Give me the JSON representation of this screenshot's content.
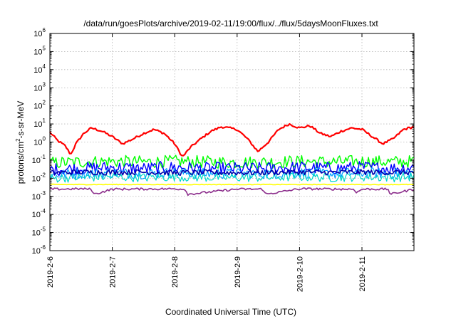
{
  "chart_data": {
    "type": "line",
    "title": "/data/run/goesPlots/archive/2019-02-11/19:00/flux/../flux/5daysMoonFluxes.txt",
    "xlabel": "Coordinated Universal Time (UTC)",
    "ylabel": "protons/cm²-s-sr-MeV",
    "ylabel_parts": {
      "pre": "protons/cm",
      "sup": "2",
      "post": "-s-sr-MeV"
    },
    "y_scale": "log",
    "ylim": [
      1e-06,
      1000000.0
    ],
    "xlim": [
      "2019-02-06 00:00",
      "2019-02-11 20:00"
    ],
    "y_ticks": [
      {
        "value": 1e-06,
        "base": "10",
        "exp": "-6"
      },
      {
        "value": 1e-05,
        "base": "10",
        "exp": "-5"
      },
      {
        "value": 0.0001,
        "base": "10",
        "exp": "-4"
      },
      {
        "value": 0.001,
        "base": "10",
        "exp": "-3"
      },
      {
        "value": 0.01,
        "base": "10",
        "exp": "-2"
      },
      {
        "value": 0.1,
        "base": "10",
        "exp": "-1"
      },
      {
        "value": 1.0,
        "base": "10",
        "exp": "0"
      },
      {
        "value": 10.0,
        "base": "10",
        "exp": "1"
      },
      {
        "value": 100.0,
        "base": "10",
        "exp": "2"
      },
      {
        "value": 1000.0,
        "base": "10",
        "exp": "3"
      },
      {
        "value": 10000.0,
        "base": "10",
        "exp": "4"
      },
      {
        "value": 100000.0,
        "base": "10",
        "exp": "5"
      },
      {
        "value": 1000000.0,
        "base": "10",
        "exp": "6"
      }
    ],
    "x_ticks": [
      {
        "date": "2019-02-06",
        "label": "2019-2-6"
      },
      {
        "date": "2019-02-07",
        "label": "2019-2-7"
      },
      {
        "date": "2019-02-08",
        "label": "2019-2-8"
      },
      {
        "date": "2019-02-09",
        "label": "2019-2-9"
      },
      {
        "date": "2019-02-10",
        "label": "2019-2-10"
      },
      {
        "date": "2019-02-11",
        "label": "2019-2-11"
      }
    ],
    "grid": true,
    "legend": "none",
    "series": [
      {
        "color": "#ff0000",
        "stroke": 2.2,
        "jitter": 0.06,
        "x": [
          "2019-02-06 00:00",
          "2019-02-06 03:00",
          "2019-02-06 06:00",
          "2019-02-06 08:00",
          "2019-02-06 10:00",
          "2019-02-06 13:00",
          "2019-02-06 16:00",
          "2019-02-06 20:00",
          "2019-02-07 00:00",
          "2019-02-07 04:00",
          "2019-02-07 08:00",
          "2019-02-07 12:00",
          "2019-02-07 16:00",
          "2019-02-07 20:00",
          "2019-02-08 00:00",
          "2019-02-08 03:00",
          "2019-02-08 06:00",
          "2019-02-08 10:00",
          "2019-02-08 14:00",
          "2019-02-08 18:00",
          "2019-02-09 00:00",
          "2019-02-09 04:00",
          "2019-02-09 08:00",
          "2019-02-09 12:00",
          "2019-02-09 16:00",
          "2019-02-09 20:00",
          "2019-02-10 00:00",
          "2019-02-10 04:00",
          "2019-02-10 08:00",
          "2019-02-10 12:00",
          "2019-02-10 16:00",
          "2019-02-10 20:00",
          "2019-02-11 00:00",
          "2019-02-11 04:00",
          "2019-02-11 08:00",
          "2019-02-11 12:00",
          "2019-02-11 16:00",
          "2019-02-11 20:00"
        ],
        "y": [
          3.5,
          1.2,
          0.6,
          0.2,
          0.8,
          3,
          6,
          4,
          2,
          0.8,
          1.5,
          3,
          5,
          3,
          0.8,
          0.15,
          0.5,
          1.5,
          4,
          7,
          5,
          1.5,
          0.3,
          1,
          5,
          10,
          6,
          8,
          3,
          2,
          4,
          6,
          5,
          2,
          0.8,
          1.5,
          5,
          7
        ]
      },
      {
        "color": "#00ff00",
        "stroke": 1.4,
        "jitter": 0.35,
        "x": [
          "2019-02-06 00:00",
          "2019-02-06 12:00",
          "2019-02-07 00:00",
          "2019-02-07 12:00",
          "2019-02-08 00:00",
          "2019-02-08 12:00",
          "2019-02-09 00:00",
          "2019-02-09 12:00",
          "2019-02-10 00:00",
          "2019-02-10 12:00",
          "2019-02-11 00:00",
          "2019-02-11 12:00",
          "2019-02-11 20:00"
        ],
        "y": [
          0.07,
          0.08,
          0.085,
          0.08,
          0.085,
          0.08,
          0.075,
          0.08,
          0.085,
          0.08,
          0.085,
          0.08,
          0.085
        ]
      },
      {
        "color": "#0000ff",
        "stroke": 1.4,
        "jitter": 0.35,
        "x": [
          "2019-02-06 00:00",
          "2019-02-06 12:00",
          "2019-02-07 00:00",
          "2019-02-07 12:00",
          "2019-02-08 00:00",
          "2019-02-08 12:00",
          "2019-02-09 00:00",
          "2019-02-09 12:00",
          "2019-02-10 00:00",
          "2019-02-10 12:00",
          "2019-02-11 00:00",
          "2019-02-11 12:00",
          "2019-02-11 20:00"
        ],
        "y": [
          0.03,
          0.035,
          0.04,
          0.035,
          0.04,
          0.035,
          0.035,
          0.035,
          0.04,
          0.035,
          0.04,
          0.035,
          0.04
        ]
      },
      {
        "color": "#00a0ff",
        "stroke": 1.2,
        "jitter": 0.3,
        "x": [
          "2019-02-06 00:00",
          "2019-02-06 12:00",
          "2019-02-07 00:00",
          "2019-02-07 12:00",
          "2019-02-08 00:00",
          "2019-02-08 12:00",
          "2019-02-09 00:00",
          "2019-02-09 12:00",
          "2019-02-10 00:00",
          "2019-02-10 12:00",
          "2019-02-11 00:00",
          "2019-02-11 12:00",
          "2019-02-11 20:00"
        ],
        "y": [
          0.015,
          0.018,
          0.02,
          0.018,
          0.02,
          0.018,
          0.018,
          0.018,
          0.02,
          0.018,
          0.02,
          0.018,
          0.02
        ]
      },
      {
        "color": "#00d8c8",
        "stroke": 1.2,
        "jitter": 0.25,
        "x": [
          "2019-02-06 00:00",
          "2019-02-06 12:00",
          "2019-02-07 00:00",
          "2019-02-07 12:00",
          "2019-02-08 00:00",
          "2019-02-08 12:00",
          "2019-02-09 00:00",
          "2019-02-09 12:00",
          "2019-02-10 00:00",
          "2019-02-10 12:00",
          "2019-02-11 00:00",
          "2019-02-11 12:00",
          "2019-02-11 20:00"
        ],
        "y": [
          0.01,
          0.011,
          0.012,
          0.011,
          0.012,
          0.011,
          0.011,
          0.011,
          0.012,
          0.011,
          0.012,
          0.011,
          0.012
        ]
      },
      {
        "color": "#0000aa",
        "stroke": 1.6,
        "jitter": 0.15,
        "x": [
          "2019-02-06 00:00",
          "2019-02-06 12:00",
          "2019-02-07 00:00",
          "2019-02-07 12:00",
          "2019-02-08 00:00",
          "2019-02-08 12:00",
          "2019-02-09 00:00",
          "2019-02-09 12:00",
          "2019-02-10 00:00",
          "2019-02-10 12:00",
          "2019-02-11 00:00",
          "2019-02-11 12:00",
          "2019-02-11 20:00"
        ],
        "y": [
          0.02,
          0.022,
          0.021,
          0.022,
          0.02,
          0.021,
          0.02,
          0.021,
          0.022,
          0.021,
          0.022,
          0.021,
          0.021
        ]
      },
      {
        "color": "#ffff00",
        "stroke": 1.6,
        "jitter": 0.02,
        "x": [
          "2019-02-06 00:00",
          "2019-02-07 00:00",
          "2019-02-08 00:00",
          "2019-02-09 00:00",
          "2019-02-10 00:00",
          "2019-02-11 00:00",
          "2019-02-11 20:00"
        ],
        "y": [
          0.0045,
          0.0045,
          0.0045,
          0.0045,
          0.0045,
          0.0045,
          0.0045
        ]
      },
      {
        "color": "#8b2c8b",
        "stroke": 1.6,
        "jitter": 0.06,
        "x": [
          "2019-02-06 00:00",
          "2019-02-06 12:00",
          "2019-02-06 16:00",
          "2019-02-06 17:00",
          "2019-02-07 00:00",
          "2019-02-08 00:00",
          "2019-02-08 04:00",
          "2019-02-08 05:00",
          "2019-02-09 00:00",
          "2019-02-09 10:00",
          "2019-02-09 11:00",
          "2019-02-10 00:00",
          "2019-02-10 21:00",
          "2019-02-10 22:00",
          "2019-02-11 00:00",
          "2019-02-11 10:00",
          "2019-02-11 11:00",
          "2019-02-11 20:00"
        ],
        "y": [
          0.0025,
          0.0026,
          0.0025,
          0.0013,
          0.0025,
          0.0026,
          0.0025,
          0.0013,
          0.0025,
          0.0025,
          0.0013,
          0.0026,
          0.0025,
          0.0016,
          0.0025,
          0.0025,
          0.0013,
          0.0025
        ]
      }
    ]
  }
}
